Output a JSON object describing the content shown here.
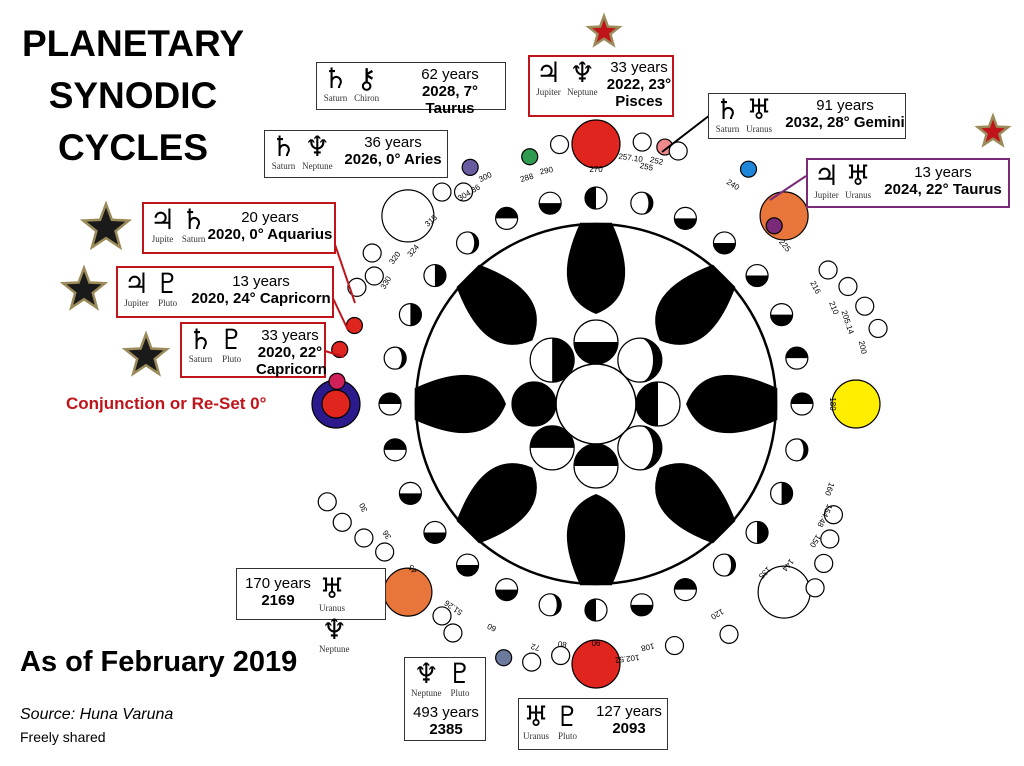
{
  "title_lines": [
    "PLANETARY",
    "SYNODIC",
    "CYCLES"
  ],
  "as_of": "As of February 2019",
  "source": "Source:  Huna Varuna",
  "shared": "Freely shared",
  "conjunction_label": "Conjunction or Re-Set 0°",
  "colors": {
    "red": "#e0251f",
    "accent_red": "#c0141b",
    "purple": "#7a2a78",
    "orange": "#e8763a",
    "yellow": "#ffee00",
    "blue": "#1e86d8",
    "navy": "#2a1a8c",
    "green": "#2e9b4e",
    "star": "#1a1a1a",
    "star_border": "#9b8b5a"
  },
  "cycles": [
    {
      "id": "saturn-chiron",
      "symbols": [
        "♄",
        "⚷"
      ],
      "names": [
        "Saturn",
        "Chiron"
      ],
      "years": "62 years",
      "date": "2028, 7° Taurus"
    },
    {
      "id": "jupiter-neptune",
      "symbols": [
        "♃",
        "♆"
      ],
      "names": [
        "Jupiter",
        "Neptune"
      ],
      "years": "33 years",
      "date": "2022, 23°",
      "date2": "Pisces"
    },
    {
      "id": "saturn-uranus",
      "symbols": [
        "♄",
        "♅"
      ],
      "names": [
        "Saturn",
        "Uranus"
      ],
      "years": "91 years",
      "date": "2032, 28° Gemini"
    },
    {
      "id": "saturn-neptune",
      "symbols": [
        "♄",
        "♆"
      ],
      "names": [
        "Saturn",
        "Neptune"
      ],
      "years": "36 years",
      "date": "2026, 0° Aries"
    },
    {
      "id": "jupiter-uranus",
      "symbols": [
        "♃",
        "♅"
      ],
      "names": [
        "Jupiter",
        "Uranus"
      ],
      "years": "13 years",
      "date": "2024, 22° Taurus"
    },
    {
      "id": "jupiter-saturn",
      "symbols": [
        "♃",
        "♄"
      ],
      "names": [
        "Jupite",
        "Saturn"
      ],
      "years": "20 years",
      "date": "2020, 0° Aquarius"
    },
    {
      "id": "jupiter-pluto",
      "symbols": [
        "♃",
        "♇"
      ],
      "names": [
        "Jupiter",
        "Pluto"
      ],
      "years": "13 years",
      "date": "2020, 24° Capricorn"
    },
    {
      "id": "saturn-pluto",
      "symbols": [
        "♄",
        "♇"
      ],
      "names": [
        "Saturn",
        "Pluto"
      ],
      "years": "33 years",
      "date": "2020, 22°",
      "date2": "Capricorn"
    },
    {
      "id": "uranus-neptune",
      "symbols": [
        "♅",
        "♆"
      ],
      "names": [
        "Uranus",
        "Neptune"
      ],
      "years": "170 years",
      "date": "2169"
    },
    {
      "id": "neptune-pluto",
      "symbols": [
        "♆",
        "♇"
      ],
      "names": [
        "Neptune",
        "Pluto"
      ],
      "years": "493 years",
      "date": "2385"
    },
    {
      "id": "uranus-pluto",
      "symbols": [
        "♅",
        "♇"
      ],
      "names": [
        "Uranus",
        "Pluto"
      ],
      "years": "127 years",
      "date": "2093"
    }
  ],
  "degree_labels": {
    "d270": "270",
    "d255": "255",
    "d290": "290",
    "d288": "288",
    "d257": "257.10",
    "d252": "252",
    "d240": "240",
    "d225": "225",
    "d300": "300",
    "d304": "304.36",
    "d315": "315",
    "d324": "324",
    "d320": "320",
    "d330": "330",
    "d216": "216",
    "d210": "210",
    "d205": "205.14",
    "d200": "200",
    "d180": "180",
    "d160": "160",
    "d154": "154.48",
    "d150": "150",
    "d144": "144",
    "d135": "135",
    "d120": "120",
    "d108": "108",
    "d102": "102.52",
    "d90": "90",
    "d80": "80",
    "d72": "72",
    "d60": "60",
    "d51": "51.26",
    "d45": "45",
    "d36": "36",
    "d30": "30"
  }
}
